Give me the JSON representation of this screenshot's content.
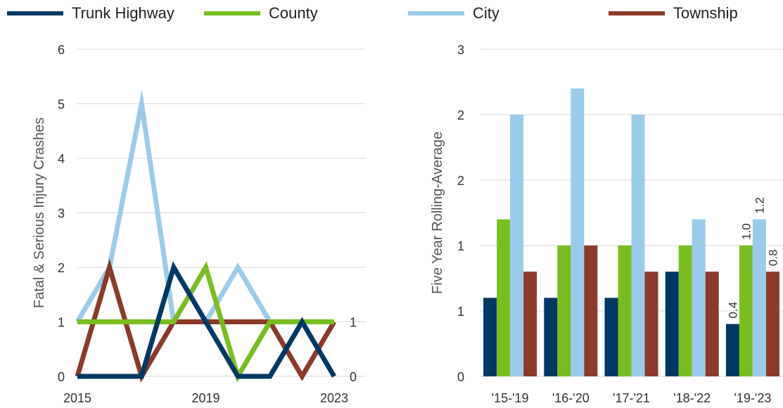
{
  "legend": [
    {
      "name": "Trunk Highway",
      "color": "#003865"
    },
    {
      "name": "County",
      "color": "#78be21"
    },
    {
      "name": "City",
      "color": "#9bcbeb"
    },
    {
      "name": "Township",
      "color": "#8b3a2a"
    }
  ],
  "chart_data": [
    {
      "type": "line",
      "ylabel": "Fatal & Serious Injury Crashes",
      "x": [
        2015,
        2016,
        2017,
        2018,
        2019,
        2020,
        2021,
        2022,
        2023
      ],
      "xticks": [
        "2015",
        "2019",
        "2023"
      ],
      "yticks": [
        "0",
        "1",
        "2",
        "3",
        "4",
        "5",
        "6"
      ],
      "ylim": [
        0,
        6
      ],
      "grid": true,
      "series": [
        {
          "name": "Trunk Highway",
          "color": "#003865",
          "values": [
            0,
            0,
            0,
            2,
            1,
            0,
            0,
            1,
            0
          ],
          "end_label": "0"
        },
        {
          "name": "County",
          "color": "#78be21",
          "values": [
            1,
            1,
            1,
            1,
            2,
            0,
            1,
            1,
            1
          ],
          "end_label": "1"
        },
        {
          "name": "City",
          "color": "#9bcbeb",
          "values": [
            1,
            2,
            5,
            1,
            1,
            2,
            1,
            1,
            1
          ],
          "end_label": "1"
        },
        {
          "name": "Township",
          "color": "#8b3a2a",
          "values": [
            0,
            2,
            0,
            1,
            1,
            1,
            1,
            0,
            1
          ],
          "end_label": "1"
        }
      ]
    },
    {
      "type": "bar",
      "ylabel": "Five Year Rolling-Average",
      "categories": [
        "'15-'19",
        "'16-'20",
        "'17-'21",
        "'18-'22",
        "'19-'23"
      ],
      "yticks": [
        "0",
        "1",
        "1",
        "2",
        "2",
        "3"
      ],
      "ylim": [
        0,
        2.5
      ],
      "grid": true,
      "series": [
        {
          "name": "Trunk Highway",
          "color": "#003865",
          "values": [
            0.6,
            0.6,
            0.6,
            0.8,
            0.4
          ]
        },
        {
          "name": "County",
          "color": "#78be21",
          "values": [
            1.2,
            1.0,
            1.0,
            1.0,
            1.0
          ]
        },
        {
          "name": "City",
          "color": "#9bcbeb",
          "values": [
            2.0,
            2.2,
            2.0,
            1.2,
            1.2
          ]
        },
        {
          "name": "Township",
          "color": "#8b3a2a",
          "values": [
            0.8,
            1.0,
            0.8,
            0.8,
            0.8
          ]
        }
      ],
      "data_labels": {
        "category_index": 4,
        "labels": [
          "0.4",
          "1.0",
          "1.2",
          "0.8"
        ]
      }
    }
  ]
}
